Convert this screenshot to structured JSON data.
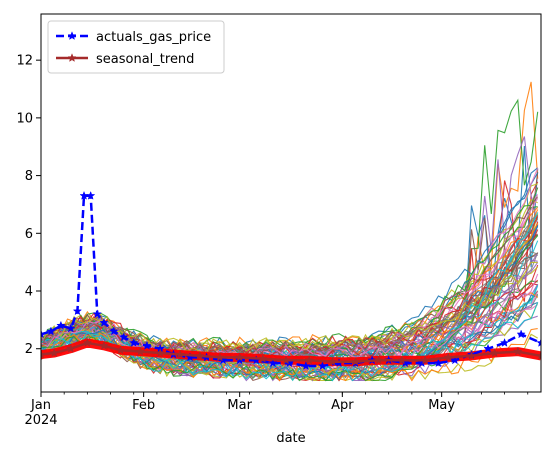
{
  "chart_data": {
    "type": "line",
    "title": "",
    "xlabel": "date",
    "ylabel": "",
    "x_range": [
      "2024-01-01",
      "2024-05-31"
    ],
    "x_ticks": [
      {
        "date": "2024-01-01",
        "label": "Jan",
        "sublabel": "2024"
      },
      {
        "date": "2024-02-01",
        "label": "Feb"
      },
      {
        "date": "2024-03-01",
        "label": "Mar"
      },
      {
        "date": "2024-04-01",
        "label": "Apr"
      },
      {
        "date": "2024-05-01",
        "label": "May"
      }
    ],
    "ylim": [
      0.5,
      13.6
    ],
    "y_ticks": [
      2,
      4,
      6,
      8,
      10,
      12
    ],
    "grid": false,
    "legend_position": "top-left",
    "series": [
      {
        "name": "actuals_gas_price",
        "color": "#0000ff",
        "style": "dashed-star",
        "x": [
          "2024-01-01",
          "2024-01-04",
          "2024-01-07",
          "2024-01-10",
          "2024-01-12",
          "2024-01-14",
          "2024-01-16",
          "2024-01-18",
          "2024-01-20",
          "2024-01-23",
          "2024-01-26",
          "2024-01-29",
          "2024-02-02",
          "2024-02-06",
          "2024-02-10",
          "2024-02-15",
          "2024-02-20",
          "2024-02-25",
          "2024-03-01",
          "2024-03-06",
          "2024-03-11",
          "2024-03-16",
          "2024-03-21",
          "2024-03-26",
          "2024-03-31",
          "2024-04-05",
          "2024-04-10",
          "2024-04-15",
          "2024-04-20",
          "2024-04-25",
          "2024-04-30",
          "2024-05-05",
          "2024-05-10",
          "2024-05-15",
          "2024-05-20",
          "2024-05-25",
          "2024-05-31"
        ],
        "y": [
          2.5,
          2.6,
          2.8,
          2.7,
          3.3,
          7.3,
          7.3,
          3.2,
          2.9,
          2.6,
          2.4,
          2.2,
          2.1,
          2.0,
          1.8,
          1.7,
          1.7,
          1.6,
          1.6,
          1.6,
          1.5,
          1.5,
          1.4,
          1.4,
          1.5,
          1.5,
          1.6,
          1.6,
          1.5,
          1.5,
          1.5,
          1.6,
          1.8,
          2.0,
          2.2,
          2.5,
          2.2
        ]
      },
      {
        "name": "seasonal_trend",
        "color": "#a52a2a",
        "style": "solid-star",
        "x": [
          "2024-01-01",
          "2024-01-05",
          "2024-01-10",
          "2024-01-15",
          "2024-01-20",
          "2024-01-25",
          "2024-01-31",
          "2024-02-06",
          "2024-02-12",
          "2024-02-18",
          "2024-02-24",
          "2024-03-01",
          "2024-03-08",
          "2024-03-15",
          "2024-03-22",
          "2024-03-29",
          "2024-04-05",
          "2024-04-12",
          "2024-04-19",
          "2024-04-26",
          "2024-05-03",
          "2024-05-10",
          "2024-05-17",
          "2024-05-24",
          "2024-05-31"
        ],
        "y": [
          1.8,
          1.85,
          2.0,
          2.2,
          2.1,
          1.95,
          1.9,
          1.85,
          1.8,
          1.75,
          1.7,
          1.7,
          1.65,
          1.6,
          1.6,
          1.55,
          1.55,
          1.6,
          1.6,
          1.6,
          1.7,
          1.75,
          1.85,
          1.9,
          1.75
        ]
      }
    ],
    "background_series_note": "",
    "overlay_color": "#ff0000"
  }
}
